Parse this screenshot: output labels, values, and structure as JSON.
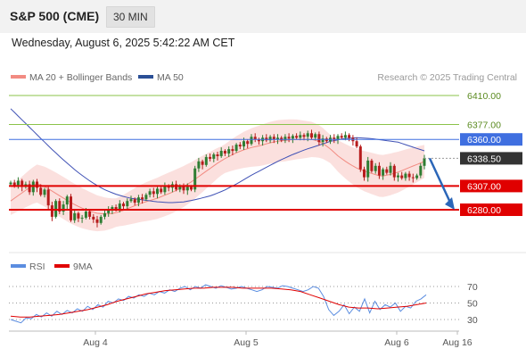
{
  "header": {
    "title": "S&P 500 (CME)",
    "interval": "30 MIN",
    "datetime": "Wednesday, August 6, 2025 5:42:22 AM CET"
  },
  "legend": {
    "ma20_label": "MA 20 + Bollinger Bands",
    "ma50_label": "MA 50",
    "attribution": "Research © 2025 Trading Central"
  },
  "rsi_legend": {
    "rsi_label": "RSI",
    "ma_label": "9MA"
  },
  "colors": {
    "up": "#2e7d32",
    "down": "#b71c1c",
    "ma20": "#f28b82",
    "ma50": "#3f51b5",
    "band": "#fadbd8",
    "resistance_light": "#8bc34a",
    "pivot": "#3f6fe0",
    "support": "#e00000",
    "last": "#333333",
    "rsi": "#5b8de0",
    "rsi_ma": "#e00000",
    "arrow": "#2b66b8"
  },
  "chart_data": [
    {
      "type": "candlestick",
      "title": "S&P 500 (CME)",
      "ylim": [
        6255,
        6420
      ],
      "levels": [
        {
          "value": 6410.0,
          "label": "6410.00",
          "style": "resistance"
        },
        {
          "value": 6377.0,
          "label": "6377.00",
          "style": "resistance"
        },
        {
          "value": 6360.0,
          "label": "6360.00",
          "style": "pivot"
        },
        {
          "value": 6338.5,
          "label": "6338.50",
          "style": "last"
        },
        {
          "value": 6307.0,
          "label": "6307.00",
          "style": "support"
        },
        {
          "value": 6280.0,
          "label": "6280.00",
          "style": "support"
        }
      ],
      "closes": [
        6311,
        6308,
        6313,
        6306,
        6309,
        6300,
        6312,
        6305,
        6297,
        6303,
        6285,
        6272,
        6290,
        6278,
        6286,
        6295,
        6268,
        6276,
        6270,
        6271,
        6278,
        6272,
        6269,
        6265,
        6272,
        6276,
        6280,
        6283,
        6280,
        6287,
        6284,
        6290,
        6292,
        6288,
        6294,
        6292,
        6297,
        6301,
        6298,
        6304,
        6300,
        6307,
        6305,
        6309,
        6303,
        6307,
        6302,
        6306,
        6303,
        6327,
        6335,
        6331,
        6340,
        6338,
        6343,
        6341,
        6347,
        6344,
        6349,
        6347,
        6354,
        6352,
        6358,
        6355,
        6363,
        6360,
        6358,
        6362,
        6359,
        6363,
        6360,
        6362,
        6359,
        6363,
        6361,
        6364,
        6362,
        6365,
        6363,
        6367,
        6362,
        6366,
        6357,
        6361,
        6358,
        6362,
        6360,
        6364,
        6362,
        6365,
        6362,
        6358,
        6352,
        6326,
        6317,
        6336,
        6324,
        6330,
        6319,
        6326,
        6322,
        6330,
        6317,
        6319,
        6316,
        6321,
        6317,
        6316,
        6319,
        6330,
        6338.5
      ],
      "ma20": [
        6290,
        6297,
        6304,
        6310,
        6306,
        6300,
        6294,
        6288,
        6283,
        6279,
        6276,
        6275,
        6276,
        6279,
        6283,
        6287,
        6290,
        6293,
        6297,
        6301,
        6306,
        6312,
        6319,
        6326,
        6333,
        6339,
        6344,
        6348,
        6351,
        6353,
        6356,
        6358,
        6359,
        6360,
        6360,
        6360,
        6357,
        6350,
        6341,
        6334,
        6328,
        6324,
        6321,
        6318,
        6320,
        6323,
        6327,
        6331,
        6335
      ],
      "ma50": [
        6395,
        6380,
        6365,
        6350,
        6336,
        6323,
        6312,
        6303,
        6297,
        6293,
        6291,
        6289,
        6288,
        6289,
        6292,
        6296,
        6302,
        6310,
        6319,
        6327,
        6335,
        6342,
        6348,
        6353,
        6358,
        6361,
        6362,
        6361,
        6359,
        6357,
        6352,
        6347
      ],
      "x_labels": [
        "Aug 4",
        "Aug 5",
        "Aug 6",
        "Aug 16"
      ],
      "forecast": {
        "from": 6338.5,
        "to": 6280.0
      }
    },
    {
      "type": "line",
      "title": "",
      "series": [
        {
          "name": "RSI",
          "values": [
            30,
            28,
            26,
            32,
            31,
            36,
            33,
            38,
            34,
            40,
            36,
            41,
            38,
            43,
            40,
            46,
            42,
            48,
            45,
            52,
            50,
            55,
            53,
            58,
            56,
            60,
            58,
            62,
            60,
            64,
            62,
            66,
            64,
            68,
            70,
            66,
            70,
            68,
            72,
            70,
            68,
            71,
            69,
            67,
            68,
            70,
            68,
            66,
            64,
            66,
            70,
            69,
            68,
            71,
            70,
            68,
            66,
            64,
            66,
            70,
            68,
            58,
            42,
            35,
            40,
            48,
            37,
            45,
            40,
            55,
            38,
            52,
            42,
            48,
            45,
            50,
            40,
            46,
            44,
            52,
            55,
            60
          ]
        },
        {
          "name": "9MA",
          "values": [
            34,
            33,
            33,
            34,
            35,
            36,
            38,
            40,
            42,
            45,
            48,
            52,
            55,
            58,
            61,
            63,
            65,
            66,
            67,
            68,
            68,
            69,
            69,
            69,
            68,
            68,
            68,
            68,
            67,
            66,
            64,
            60,
            56,
            52,
            48,
            45,
            44,
            44,
            43,
            44,
            45,
            46,
            48,
            50
          ]
        }
      ],
      "levels": [
        70,
        50,
        30
      ],
      "ylim": [
        20,
        80
      ]
    }
  ]
}
